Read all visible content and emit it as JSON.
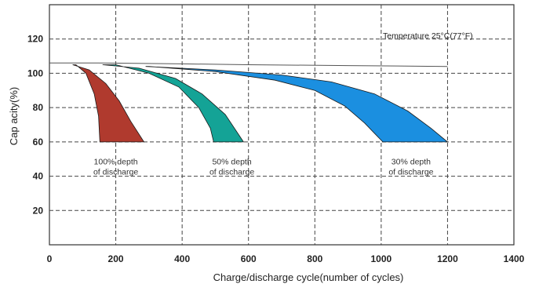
{
  "chart_data": {
    "type": "area",
    "title": "",
    "xlabel": "Charge/discharge cycle(number of cycles)",
    "ylabel": "Cap acity(%)",
    "xlim": [
      0,
      1400
    ],
    "ylim": [
      0,
      140
    ],
    "xticks": [
      0,
      200,
      400,
      600,
      800,
      1000,
      1200,
      1400
    ],
    "yticks": [
      20,
      40,
      60,
      80,
      100,
      120
    ],
    "grid": true,
    "annotation": "Temperature 25°C(77°F)",
    "series": [
      {
        "label_lines": [
          "100% depth",
          "of discharge"
        ],
        "color": "#b03a2e",
        "upper": [
          [
            70,
            105
          ],
          [
            120,
            102
          ],
          [
            170,
            94
          ],
          [
            210,
            84
          ],
          [
            245,
            72
          ],
          [
            285,
            60
          ]
        ],
        "lower": [
          [
            80,
            105
          ],
          [
            110,
            100
          ],
          [
            135,
            88
          ],
          [
            148,
            75
          ],
          [
            152,
            60
          ]
        ]
      },
      {
        "label_lines": [
          "50% depth",
          "of discharge"
        ],
        "color": "#14a396",
        "upper": [
          [
            160,
            105
          ],
          [
            270,
            103
          ],
          [
            380,
            97
          ],
          [
            460,
            88
          ],
          [
            530,
            76
          ],
          [
            585,
            60
          ]
        ],
        "lower": [
          [
            200,
            105
          ],
          [
            300,
            100
          ],
          [
            390,
            92
          ],
          [
            450,
            80
          ],
          [
            485,
            68
          ],
          [
            495,
            60
          ]
        ]
      },
      {
        "label_lines": [
          "30% depth",
          "of discharge"
        ],
        "color": "#1b8fe0",
        "upper": [
          [
            290,
            104
          ],
          [
            500,
            102
          ],
          [
            700,
            99
          ],
          [
            850,
            95
          ],
          [
            980,
            88
          ],
          [
            1080,
            78
          ],
          [
            1150,
            68
          ],
          [
            1200,
            60
          ]
        ],
        "lower": [
          [
            300,
            104
          ],
          [
            500,
            101
          ],
          [
            680,
            96
          ],
          [
            800,
            90
          ],
          [
            890,
            81
          ],
          [
            950,
            71
          ],
          [
            990,
            63
          ],
          [
            1005,
            60
          ]
        ]
      }
    ],
    "reference_line": [
      [
        0,
        106
      ],
      [
        150,
        106
      ],
      [
        400,
        105.5
      ],
      [
        600,
        105
      ],
      [
        900,
        104.5
      ],
      [
        1200,
        104
      ]
    ],
    "label_positions": [
      [
        200,
        47
      ],
      [
        550,
        47
      ],
      [
        1090,
        47
      ]
    ]
  }
}
